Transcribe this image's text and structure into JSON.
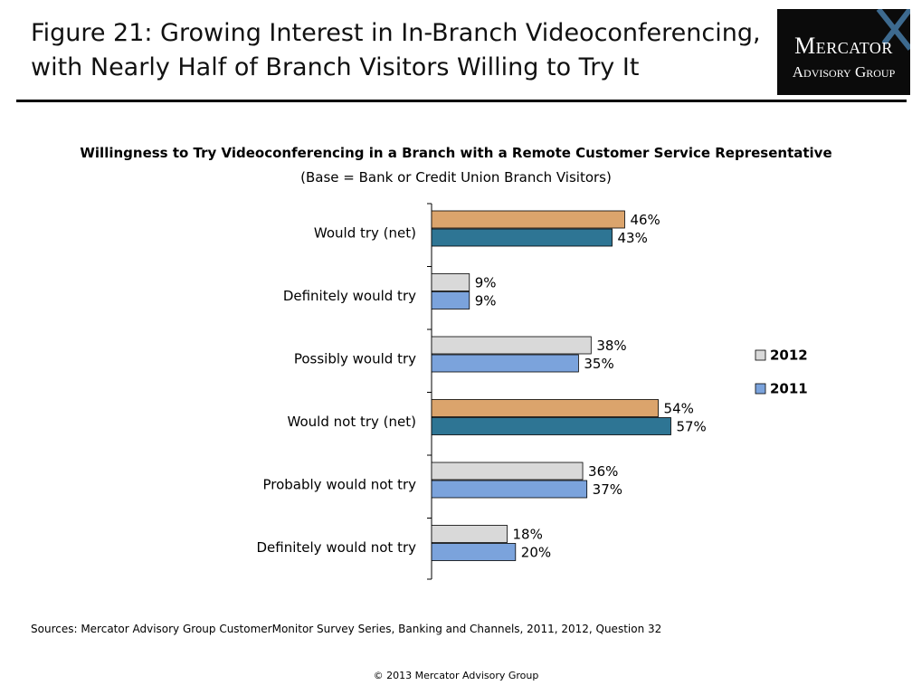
{
  "figure": {
    "title": "Figure 21: Growing Interest in In-Branch Videoconferencing, with Nearly Half of Branch Visitors Willing to Try It"
  },
  "logo": {
    "line1": "Mercator",
    "line2": "Advisory Group"
  },
  "chart_data": {
    "type": "bar",
    "orientation": "horizontal",
    "title": "Willingness to Try Videoconferencing in a Branch with a Remote Customer Service Representative",
    "subtitle": "(Base = Bank or Credit Union Branch Visitors)",
    "xlabel": "",
    "ylabel": "",
    "xlim": [
      0,
      100
    ],
    "grid": false,
    "legend_position": "right",
    "categories": [
      "Would try (net)",
      "Definitely would try",
      "Possibly would try",
      "Would not try (net)",
      "Probably would not try",
      "Definitely would not try"
    ],
    "series": [
      {
        "name": "2012",
        "values": [
          46,
          9,
          38,
          54,
          36,
          18
        ],
        "labels": [
          "46%",
          "9%",
          "38%",
          "54%",
          "36%",
          "18%"
        ]
      },
      {
        "name": "2011",
        "values": [
          43,
          9,
          35,
          57,
          37,
          20
        ],
        "labels": [
          "43%",
          "9%",
          "35%",
          "57%",
          "37%",
          "20%"
        ]
      }
    ],
    "net_categories": [
      0,
      3
    ],
    "colors": {
      "2012": "#d9d9d9",
      "2011": "#7ba3dc",
      "net_2012": "#dba46c",
      "net_2011": "#2e7594"
    }
  },
  "footer": {
    "sources": "Sources: Mercator Advisory Group CustomerMonitor Survey Series, Banking and Channels, 2011, 2012,  Question 32",
    "copyright": "© 2013 Mercator Advisory Group"
  }
}
